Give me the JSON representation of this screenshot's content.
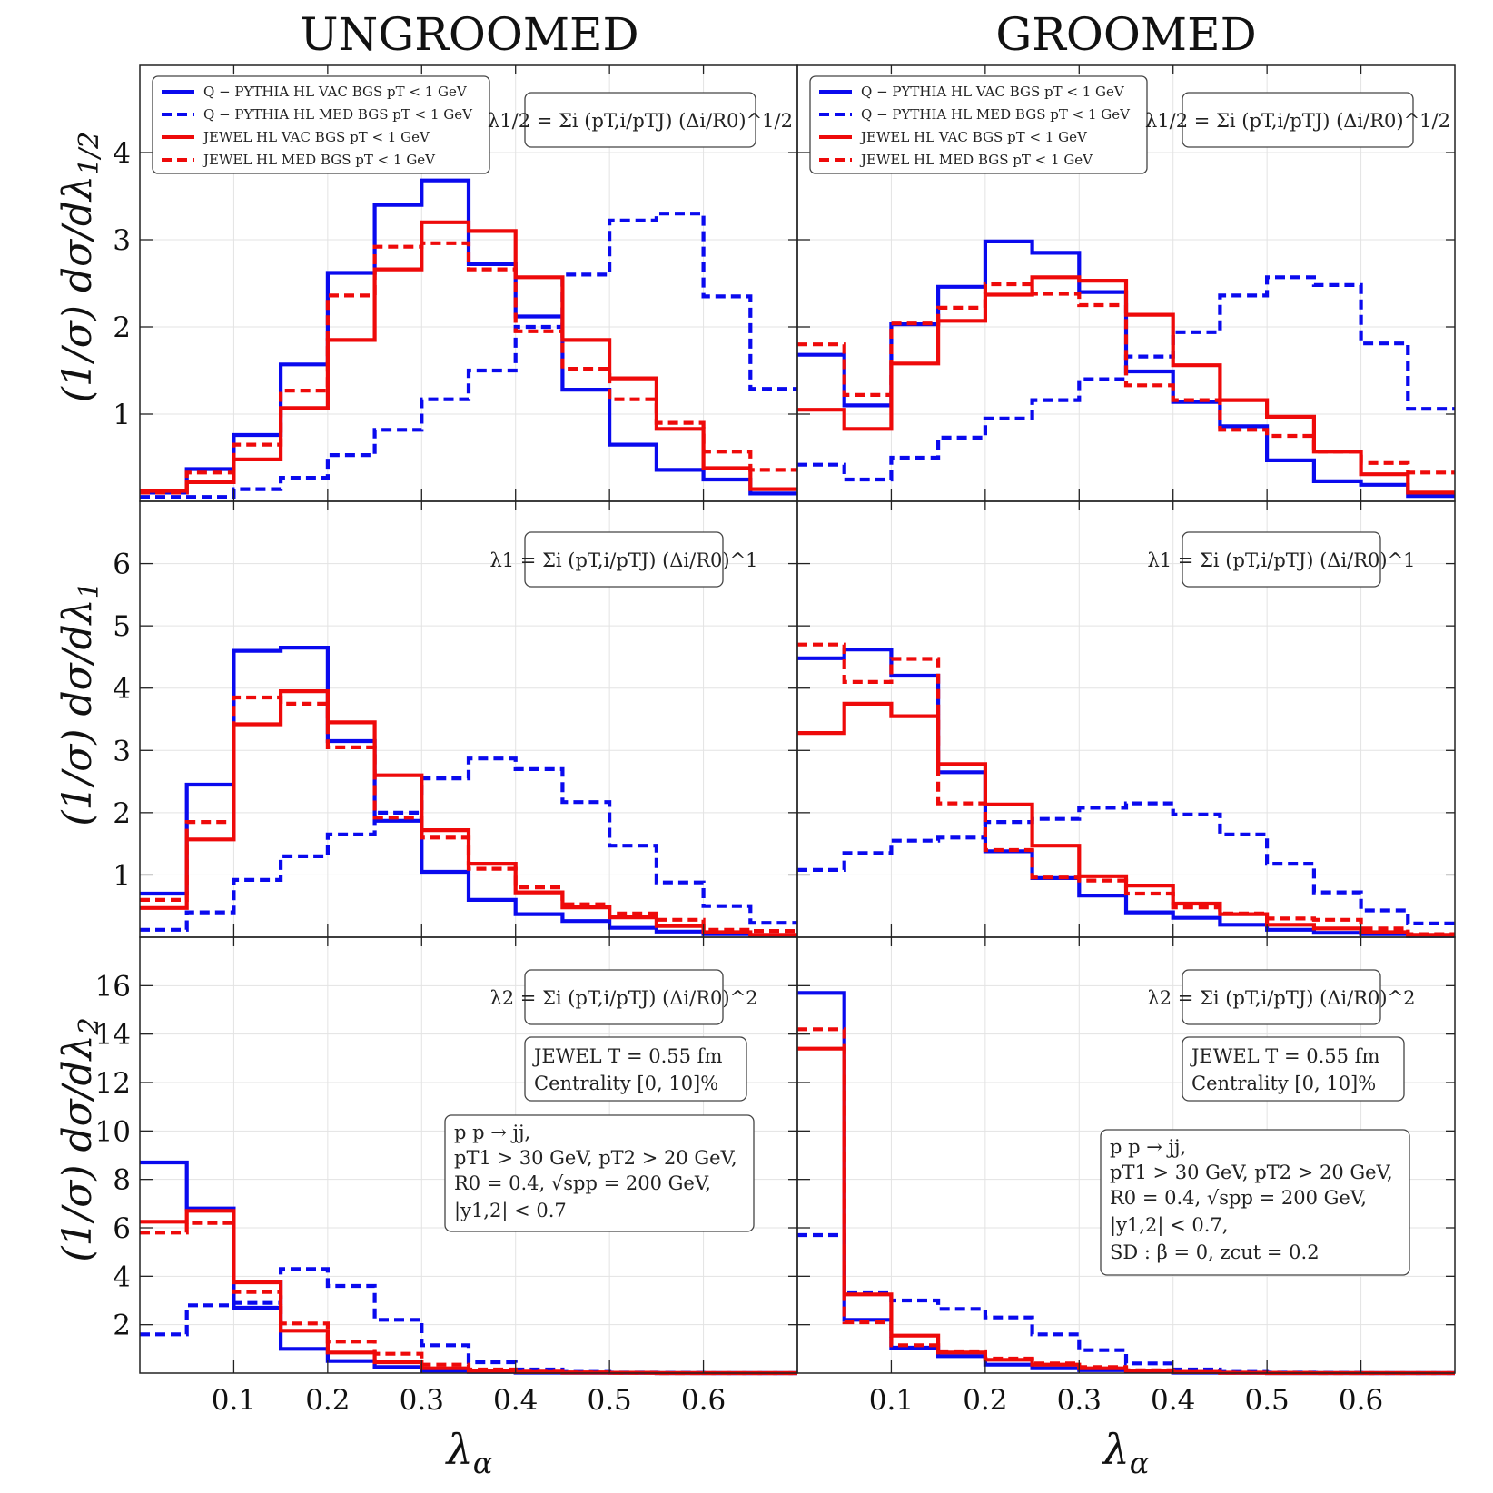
{
  "figure": {
    "column_titles": [
      "UNGROOMED",
      "GROOMED"
    ],
    "row_ylabels": [
      "(1/σ) dσ/dλ1/2",
      "(1/σ) dσ/dλ1",
      "(1/σ) dσ/dλ2"
    ],
    "xlabel": "λα",
    "legend": [
      {
        "label": "Q − PYTHIA HL VAC BGS pT < 1 GeV",
        "color": "#0a0aee",
        "dash": "solid"
      },
      {
        "label": "Q − PYTHIA HL MED BGS pT < 1 GeV",
        "color": "#0a0aee",
        "dash": "dashed"
      },
      {
        "label": "JEWEL HL VAC BGS pT < 1 GeV",
        "color": "#ee0a0a",
        "dash": "solid"
      },
      {
        "label": "JEWEL HL MED BGS pT < 1 GeV",
        "color": "#ee0a0a",
        "dash": "dashed"
      }
    ],
    "formulas": [
      "λ1/2 = Σi (pT,i/pTJ) (Δi/R0)^1/2",
      "λ1 = Σi (pT,i/pTJ) (Δi/R0)^1",
      "λ2 = Σi (pT,i/pTJ) (Δi/R0)^2"
    ],
    "jewel_box": [
      "JEWEL T = 0.55 fm",
      "Centrality [0, 10]%"
    ],
    "kin_box_ungroomed": [
      "p p → jj,",
      "pT1 > 30 GeV, pT2 > 20 GeV,",
      "R0 = 0.4, √spp = 200 GeV,",
      "|y1,2| < 0.7"
    ],
    "kin_box_groomed": [
      "p p → jj,",
      "pT1 > 30 GeV, pT2 > 20 GeV,",
      "R0 = 0.4, √spp = 200 GeV,",
      "|y1,2| < 0.7,",
      "SD : β = 0, zcut = 0.2"
    ],
    "colors": {
      "pythia": "#0a0aee",
      "jewel": "#ee0a0a"
    }
  },
  "chart_data": [
    {
      "type": "histogram-step",
      "row": 0,
      "col": 0,
      "title": "UNGROOMED",
      "ylabel": "(1/σ) dσ/dλ1/2",
      "xlabel": "",
      "xlim": [
        0,
        0.7
      ],
      "ylim": [
        0,
        5.0
      ],
      "xticks": [
        0.1,
        0.2,
        0.3,
        0.4,
        0.5,
        0.6
      ],
      "yticks": [
        1,
        2,
        3,
        4
      ],
      "bin_edges": [
        0,
        0.05,
        0.1,
        0.15,
        0.2,
        0.25,
        0.3,
        0.35,
        0.4,
        0.45,
        0.5,
        0.55,
        0.6,
        0.65,
        0.7
      ],
      "series": [
        {
          "name": "Q − PYTHIA HL VAC BGS pT < 1 GeV",
          "values": [
            0.1,
            0.37,
            0.76,
            1.57,
            2.62,
            3.4,
            3.68,
            2.72,
            2.12,
            1.28,
            0.65,
            0.36,
            0.25,
            0.09
          ]
        },
        {
          "name": "Q − PYTHIA HL MED BGS pT < 1 GeV",
          "values": [
            0.05,
            0.05,
            0.14,
            0.27,
            0.53,
            0.82,
            1.17,
            1.5,
            2.0,
            2.6,
            3.22,
            3.3,
            2.35,
            1.29
          ]
        },
        {
          "name": "JEWEL HL VAC BGS pT < 1 GeV",
          "values": [
            0.12,
            0.22,
            0.48,
            1.07,
            1.85,
            2.66,
            3.2,
            3.1,
            2.57,
            1.85,
            1.41,
            0.83,
            0.38,
            0.14
          ]
        },
        {
          "name": "JEWEL HL MED BGS pT < 1 GeV",
          "values": [
            0.1,
            0.33,
            0.65,
            1.27,
            2.36,
            2.92,
            2.96,
            2.66,
            1.95,
            1.52,
            1.17,
            0.9,
            0.57,
            0.36
          ]
        }
      ]
    },
    {
      "type": "histogram-step",
      "row": 0,
      "col": 1,
      "title": "GROOMED",
      "ylabel": "",
      "xlabel": "",
      "xlim": [
        0,
        0.7
      ],
      "ylim": [
        0,
        5.0
      ],
      "xticks": [
        0.1,
        0.2,
        0.3,
        0.4,
        0.5,
        0.6
      ],
      "yticks": [
        1,
        2,
        3,
        4
      ],
      "bin_edges": [
        0,
        0.05,
        0.1,
        0.15,
        0.2,
        0.25,
        0.3,
        0.35,
        0.4,
        0.45,
        0.5,
        0.55,
        0.6,
        0.65,
        0.7
      ],
      "series": [
        {
          "name": "Q − PYTHIA HL VAC BGS pT < 1 GeV",
          "values": [
            1.68,
            1.1,
            2.03,
            2.46,
            2.98,
            2.85,
            2.4,
            1.49,
            1.14,
            0.86,
            0.47,
            0.23,
            0.19,
            0.06
          ]
        },
        {
          "name": "Q − PYTHIA HL MED BGS pT < 1 GeV",
          "values": [
            0.42,
            0.25,
            0.5,
            0.73,
            0.95,
            1.16,
            1.4,
            1.66,
            1.94,
            2.36,
            2.57,
            2.48,
            1.81,
            1.06
          ]
        },
        {
          "name": "JEWEL HL VAC BGS pT < 1 GeV",
          "values": [
            1.05,
            0.83,
            1.58,
            2.07,
            2.37,
            2.57,
            2.53,
            2.14,
            1.56,
            1.16,
            0.97,
            0.57,
            0.31,
            0.1
          ]
        },
        {
          "name": "JEWEL HL MED BGS pT < 1 GeV",
          "values": [
            1.8,
            1.22,
            2.04,
            2.22,
            2.49,
            2.38,
            2.25,
            1.33,
            1.16,
            0.82,
            0.75,
            0.57,
            0.44,
            0.33
          ]
        }
      ]
    },
    {
      "type": "histogram-step",
      "row": 1,
      "col": 0,
      "title": "",
      "ylabel": "(1/σ) dσ/dλ1",
      "xlabel": "",
      "xlim": [
        0,
        0.7
      ],
      "ylim": [
        0,
        7.0
      ],
      "xticks": [
        0.1,
        0.2,
        0.3,
        0.4,
        0.5,
        0.6
      ],
      "yticks": [
        1,
        2,
        3,
        4,
        5,
        6
      ],
      "bin_edges": [
        0,
        0.05,
        0.1,
        0.15,
        0.2,
        0.25,
        0.3,
        0.35,
        0.4,
        0.45,
        0.5,
        0.55,
        0.6,
        0.65,
        0.7
      ],
      "series": [
        {
          "name": "Q − PYTHIA HL VAC BGS pT < 1 GeV",
          "values": [
            0.7,
            2.45,
            4.6,
            4.65,
            3.15,
            1.87,
            1.05,
            0.6,
            0.37,
            0.26,
            0.15,
            0.09,
            0.05,
            0.03
          ]
        },
        {
          "name": "Q − PYTHIA HL MED BGS pT < 1 GeV",
          "values": [
            0.12,
            0.4,
            0.92,
            1.3,
            1.65,
            2.0,
            2.55,
            2.87,
            2.7,
            2.17,
            1.47,
            0.88,
            0.5,
            0.23
          ]
        },
        {
          "name": "JEWEL HL VAC BGS pT < 1 GeV",
          "values": [
            0.47,
            1.57,
            3.42,
            3.95,
            3.45,
            2.6,
            1.72,
            1.18,
            0.72,
            0.48,
            0.32,
            0.18,
            0.08,
            0.04
          ]
        },
        {
          "name": "JEWEL HL MED BGS pT < 1 GeV",
          "values": [
            0.6,
            1.85,
            3.85,
            3.75,
            3.05,
            1.92,
            1.6,
            1.1,
            0.8,
            0.53,
            0.38,
            0.28,
            0.12,
            0.1
          ]
        }
      ]
    },
    {
      "type": "histogram-step",
      "row": 1,
      "col": 1,
      "title": "",
      "ylabel": "",
      "xlabel": "",
      "xlim": [
        0,
        0.7
      ],
      "ylim": [
        0,
        7.0
      ],
      "xticks": [
        0.1,
        0.2,
        0.3,
        0.4,
        0.5,
        0.6
      ],
      "yticks": [
        1,
        2,
        3,
        4,
        5,
        6
      ],
      "bin_edges": [
        0,
        0.05,
        0.1,
        0.15,
        0.2,
        0.25,
        0.3,
        0.35,
        0.4,
        0.45,
        0.5,
        0.55,
        0.6,
        0.65,
        0.7
      ],
      "series": [
        {
          "name": "Q − PYTHIA HL VAC BGS pT < 1 GeV",
          "values": [
            4.48,
            4.62,
            4.2,
            2.65,
            1.38,
            0.95,
            0.67,
            0.4,
            0.31,
            0.2,
            0.12,
            0.07,
            0.05,
            0.02
          ]
        },
        {
          "name": "Q − PYTHIA HL MED BGS pT < 1 GeV",
          "values": [
            1.08,
            1.35,
            1.55,
            1.6,
            1.85,
            1.9,
            2.08,
            2.15,
            1.97,
            1.65,
            1.18,
            0.72,
            0.43,
            0.22
          ]
        },
        {
          "name": "JEWEL HL VAC BGS pT < 1 GeV",
          "values": [
            3.28,
            3.75,
            3.55,
            2.78,
            2.13,
            1.47,
            0.98,
            0.83,
            0.54,
            0.37,
            0.2,
            0.14,
            0.08,
            0.04
          ]
        },
        {
          "name": "JEWEL HL MED BGS pT < 1 GeV",
          "values": [
            4.7,
            4.1,
            4.47,
            2.15,
            1.4,
            0.96,
            0.91,
            0.7,
            0.48,
            0.38,
            0.3,
            0.28,
            0.14,
            0.05
          ]
        }
      ]
    },
    {
      "type": "histogram-step",
      "row": 2,
      "col": 0,
      "title": "",
      "ylabel": "(1/σ) dσ/dλ2",
      "xlabel": "λα",
      "xlim": [
        0,
        0.7
      ],
      "ylim": [
        0,
        18.0
      ],
      "xticks": [
        0.1,
        0.2,
        0.3,
        0.4,
        0.5,
        0.6
      ],
      "yticks": [
        2,
        4,
        6,
        8,
        10,
        12,
        14,
        16
      ],
      "bin_edges": [
        0,
        0.05,
        0.1,
        0.15,
        0.2,
        0.25,
        0.3,
        0.35,
        0.4,
        0.45,
        0.5,
        0.55,
        0.6,
        0.65,
        0.7
      ],
      "series": [
        {
          "name": "Q − PYTHIA HL VAC BGS pT < 1 GeV",
          "values": [
            8.7,
            6.8,
            2.7,
            1.0,
            0.5,
            0.25,
            0.1,
            0.05,
            0.02,
            0.01,
            0.01,
            0.0,
            0.0,
            0.0
          ]
        },
        {
          "name": "Q − PYTHIA HL MED BGS pT < 1 GeV",
          "values": [
            1.6,
            2.8,
            2.9,
            4.3,
            3.6,
            2.2,
            1.15,
            0.45,
            0.15,
            0.05,
            0.02,
            0.01,
            0.0,
            0.0
          ]
        },
        {
          "name": "JEWEL HL VAC BGS pT < 1 GeV",
          "values": [
            6.25,
            6.7,
            3.75,
            1.75,
            0.85,
            0.45,
            0.2,
            0.09,
            0.04,
            0.02,
            0.01,
            0.0,
            0.0,
            0.0
          ]
        },
        {
          "name": "JEWEL HL MED BGS pT < 1 GeV",
          "values": [
            5.8,
            6.2,
            3.35,
            2.05,
            1.3,
            0.8,
            0.35,
            0.15,
            0.06,
            0.03,
            0.01,
            0.0,
            0.0,
            0.0
          ]
        }
      ]
    },
    {
      "type": "histogram-step",
      "row": 2,
      "col": 1,
      "title": "",
      "ylabel": "",
      "xlabel": "λα",
      "xlim": [
        0,
        0.7
      ],
      "ylim": [
        0,
        18.0
      ],
      "xticks": [
        0.1,
        0.2,
        0.3,
        0.4,
        0.5,
        0.6
      ],
      "yticks": [
        2,
        4,
        6,
        8,
        10,
        12,
        14,
        16
      ],
      "bin_edges": [
        0,
        0.05,
        0.1,
        0.15,
        0.2,
        0.25,
        0.3,
        0.35,
        0.4,
        0.45,
        0.5,
        0.55,
        0.6,
        0.65,
        0.7
      ],
      "series": [
        {
          "name": "Q − PYTHIA HL VAC BGS pT < 1 GeV",
          "values": [
            15.7,
            2.2,
            1.05,
            0.7,
            0.35,
            0.2,
            0.12,
            0.06,
            0.02,
            0.01,
            0.0,
            0.0,
            0.0,
            0.0
          ]
        },
        {
          "name": "Q − PYTHIA HL MED BGS pT < 1 GeV",
          "values": [
            5.7,
            3.3,
            3.0,
            2.65,
            2.3,
            1.6,
            0.95,
            0.4,
            0.15,
            0.05,
            0.02,
            0.01,
            0.0,
            0.0
          ]
        },
        {
          "name": "JEWEL HL VAC BGS pT < 1 GeV",
          "values": [
            13.4,
            3.25,
            1.55,
            0.85,
            0.55,
            0.35,
            0.2,
            0.1,
            0.04,
            0.01,
            0.0,
            0.0,
            0.0,
            0.0
          ]
        },
        {
          "name": "JEWEL HL MED BGS pT < 1 GeV",
          "values": [
            14.2,
            2.1,
            1.15,
            0.9,
            0.6,
            0.4,
            0.25,
            0.12,
            0.05,
            0.02,
            0.01,
            0.0,
            0.0,
            0.0
          ]
        }
      ]
    }
  ]
}
